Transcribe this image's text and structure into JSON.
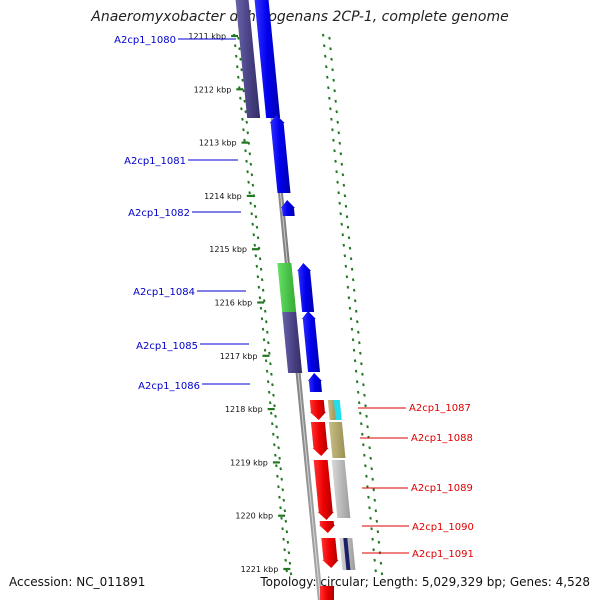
{
  "header": {
    "title": "Anaeromyxobacter dehalogenans 2CP-1, complete genome"
  },
  "footer": {
    "accession": "Accession: NC_011891",
    "summary": "Topology: circular; Length: 5,029,329 bp; Genes: 4,528"
  },
  "colors": {
    "forward_gene": "#0000ee",
    "reverse_gene": "#ee0000",
    "backbone": "#888888",
    "tick": "#227722",
    "forward_label": "#0000cc",
    "reverse_label": "#dd0000",
    "cog_purple": "#4b4487",
    "cog_green": "#44cc44",
    "cog_cyan": "#22ddee",
    "cog_khaki": "#b5a96a",
    "cog_gray": "#bbbbbb",
    "cog_navy": "#1a1f66"
  },
  "scale_labels": [
    "1211 kbp",
    "1212 kbp",
    "1213 kbp",
    "1214 kbp",
    "1215 kbp",
    "1216 kbp",
    "1217 kbp",
    "1218 kbp",
    "1219 kbp",
    "1220 kbp",
    "1221 kbp"
  ],
  "genes": [
    {
      "label": "A2cp1_1080",
      "strand": "forward"
    },
    {
      "label": "A2cp1_1081",
      "strand": "forward"
    },
    {
      "label": "A2cp1_1082",
      "strand": "forward"
    },
    {
      "label": "A2cp1_1084",
      "strand": "forward"
    },
    {
      "label": "A2cp1_1085",
      "strand": "forward"
    },
    {
      "label": "A2cp1_1086",
      "strand": "forward"
    },
    {
      "label": "A2cp1_1087",
      "strand": "reverse"
    },
    {
      "label": "A2cp1_1088",
      "strand": "reverse"
    },
    {
      "label": "A2cp1_1089",
      "strand": "reverse"
    },
    {
      "label": "A2cp1_1090",
      "strand": "reverse"
    },
    {
      "label": "A2cp1_1091",
      "strand": "reverse"
    }
  ]
}
